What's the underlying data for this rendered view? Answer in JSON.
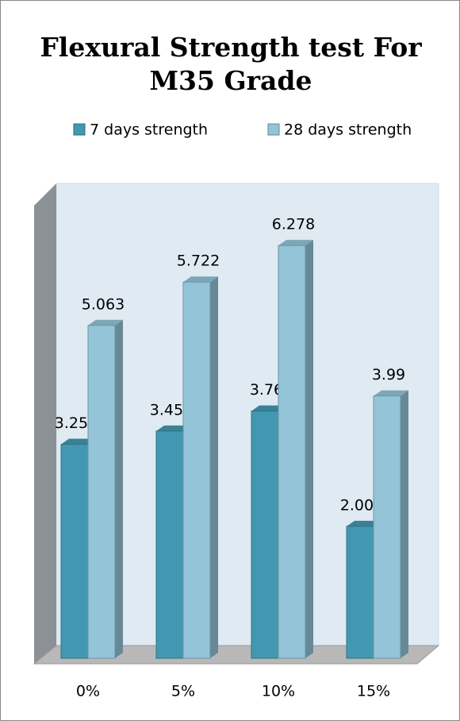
{
  "chart_data": {
    "type": "bar3d",
    "title": "Flexural Strength test For M35 Grade",
    "categories": [
      "0%",
      "5%",
      "10%",
      "15%"
    ],
    "series": [
      {
        "name": "7 days strength",
        "color": "#4398b1",
        "values": [
          3.255,
          3.456,
          3.76,
          2.007
        ]
      },
      {
        "name": "28 days strength",
        "color": "#93c4d8",
        "values": [
          5.063,
          5.722,
          6.278,
          3.99
        ]
      }
    ],
    "legend": "top"
  }
}
